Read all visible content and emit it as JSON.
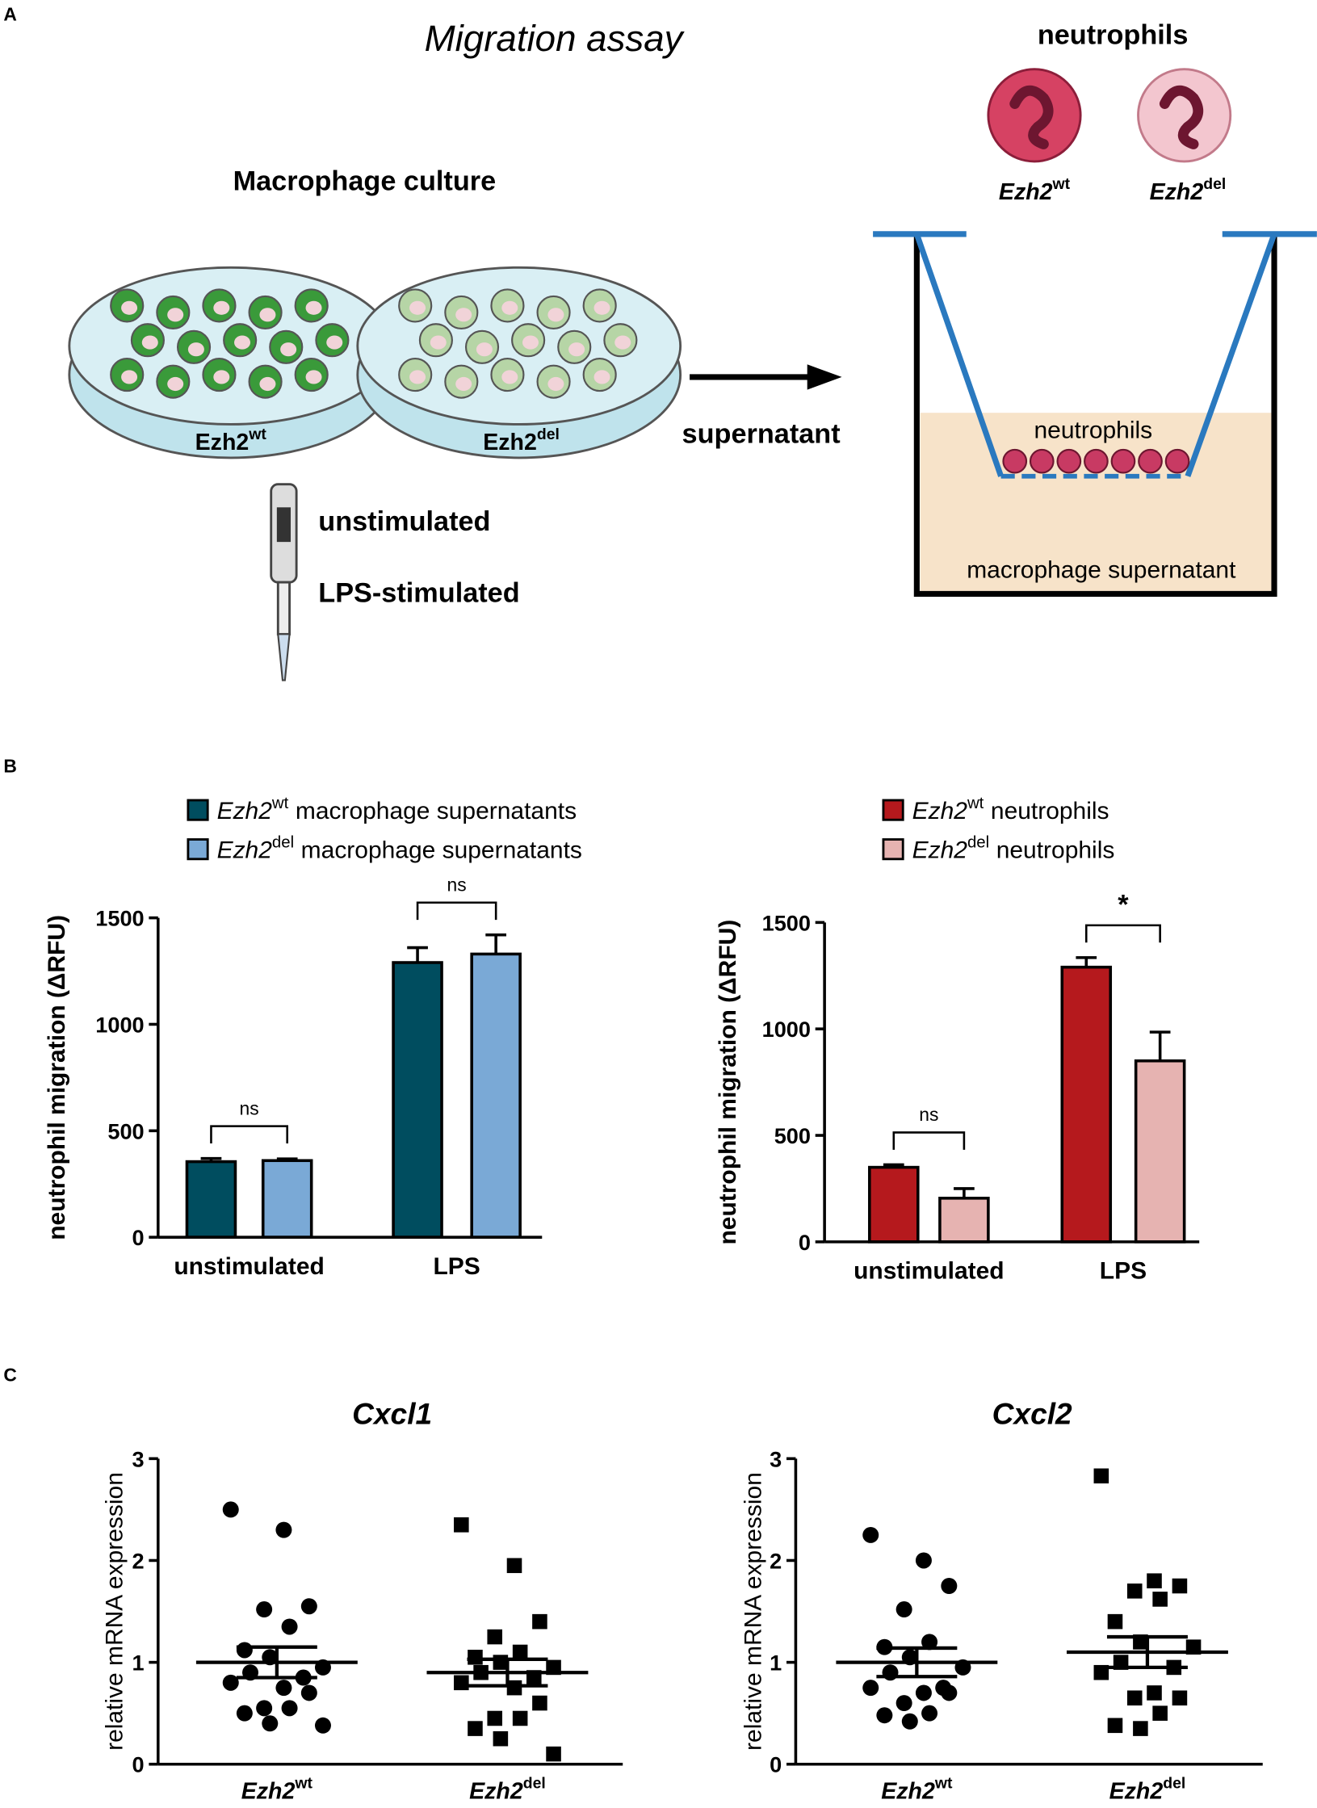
{
  "panel_labels": [
    "A",
    "B",
    "C"
  ],
  "diagram": {
    "title": "Migration assay",
    "neutrophils_heading": "neutrophils",
    "neutrophil_types": [
      [
        "Ezh2",
        "wt"
      ],
      [
        "Ezh2",
        "del"
      ]
    ],
    "culture_heading": "Macrophage culture",
    "dishes": [
      [
        "Ezh2",
        "wt"
      ],
      [
        "Ezh2",
        "del"
      ]
    ],
    "arrow_label": "supernatant",
    "conditions": [
      "unstimulated",
      "LPS-stimulated"
    ],
    "insert_label": "neutrophils",
    "well_label": "macrophage supernatant"
  },
  "chart_data": [
    {
      "type": "bar",
      "categories": [
        "unstimulated",
        "LPS"
      ],
      "ylabel": "neutrophil migration (ΔRFU)",
      "ylim": [
        0,
        1500
      ],
      "yticks": [
        0,
        500,
        1000,
        1500
      ],
      "series": [
        {
          "name": [
            "Ezh2",
            "wt",
            "macrophage supernatants"
          ],
          "color": "#004d5f",
          "values": [
            355,
            1290
          ],
          "errors": [
            15,
            70
          ]
        },
        {
          "name": [
            "Ezh2",
            "del",
            "macrophage supernatants"
          ],
          "color": "#7aa9d6",
          "values": [
            360,
            1330
          ],
          "errors": [
            8,
            90
          ]
        }
      ],
      "annotations": [
        {
          "text": "ns",
          "category": "unstimulated"
        },
        {
          "text": "ns",
          "category": "LPS"
        }
      ]
    },
    {
      "type": "bar",
      "categories": [
        "unstimulated",
        "LPS"
      ],
      "ylabel": "neutrophil migration (ΔRFU)",
      "ylim": [
        0,
        1500
      ],
      "yticks": [
        0,
        500,
        1000,
        1500
      ],
      "series": [
        {
          "name": [
            "Ezh2",
            "wt",
            "neutrophils"
          ],
          "color": "#b5191d",
          "values": [
            350,
            1290
          ],
          "errors": [
            12,
            45
          ]
        },
        {
          "name": [
            "Ezh2",
            "del",
            "neutrophils"
          ],
          "color": "#e6b3b1",
          "values": [
            205,
            850
          ],
          "errors": [
            45,
            135
          ]
        }
      ],
      "annotations": [
        {
          "text": "ns",
          "category": "unstimulated"
        },
        {
          "text": "*",
          "category": "LPS"
        }
      ]
    },
    {
      "type": "scatter",
      "title": "Cxcl1",
      "ylabel": "relative mRNA expression",
      "ylim": [
        0,
        3
      ],
      "yticks": [
        0,
        1,
        2,
        3
      ],
      "series": [
        {
          "name": [
            "Ezh2",
            "wt"
          ],
          "marker": "circle",
          "color": "#000000",
          "values": [
            2.5,
            2.3,
            1.55,
            1.52,
            1.35,
            1.12,
            1.05,
            0.95,
            0.9,
            0.85,
            0.8,
            0.75,
            0.7,
            0.55,
            0.55,
            0.5,
            0.4,
            0.38
          ],
          "mean": 1.0,
          "sem": 0.15
        },
        {
          "name": [
            "Ezh2",
            "del"
          ],
          "marker": "square",
          "color": "#000000",
          "values": [
            2.35,
            1.95,
            1.4,
            1.25,
            1.1,
            1.05,
            1.0,
            0.95,
            0.9,
            0.85,
            0.8,
            0.75,
            0.6,
            0.45,
            0.45,
            0.35,
            0.25,
            0.1
          ],
          "mean": 0.9,
          "sem": 0.13
        }
      ]
    },
    {
      "type": "scatter",
      "title": "Cxcl2",
      "ylabel": "relative mRNA expression",
      "ylim": [
        0,
        3
      ],
      "yticks": [
        0,
        1,
        2,
        3
      ],
      "series": [
        {
          "name": [
            "Ezh2",
            "wt"
          ],
          "marker": "circle",
          "color": "#000000",
          "values": [
            2.25,
            2.0,
            1.75,
            1.52,
            1.2,
            1.15,
            1.05,
            0.95,
            0.9,
            0.75,
            0.75,
            0.7,
            0.7,
            0.6,
            0.5,
            0.48,
            0.42
          ],
          "mean": 1.0,
          "sem": 0.14
        },
        {
          "name": [
            "Ezh2",
            "del"
          ],
          "marker": "square",
          "color": "#000000",
          "values": [
            2.83,
            1.8,
            1.75,
            1.7,
            1.62,
            1.4,
            1.2,
            1.15,
            1.0,
            0.95,
            0.9,
            0.7,
            0.65,
            0.65,
            0.5,
            0.38,
            0.35
          ],
          "mean": 1.1,
          "sem": 0.15
        }
      ]
    }
  ]
}
